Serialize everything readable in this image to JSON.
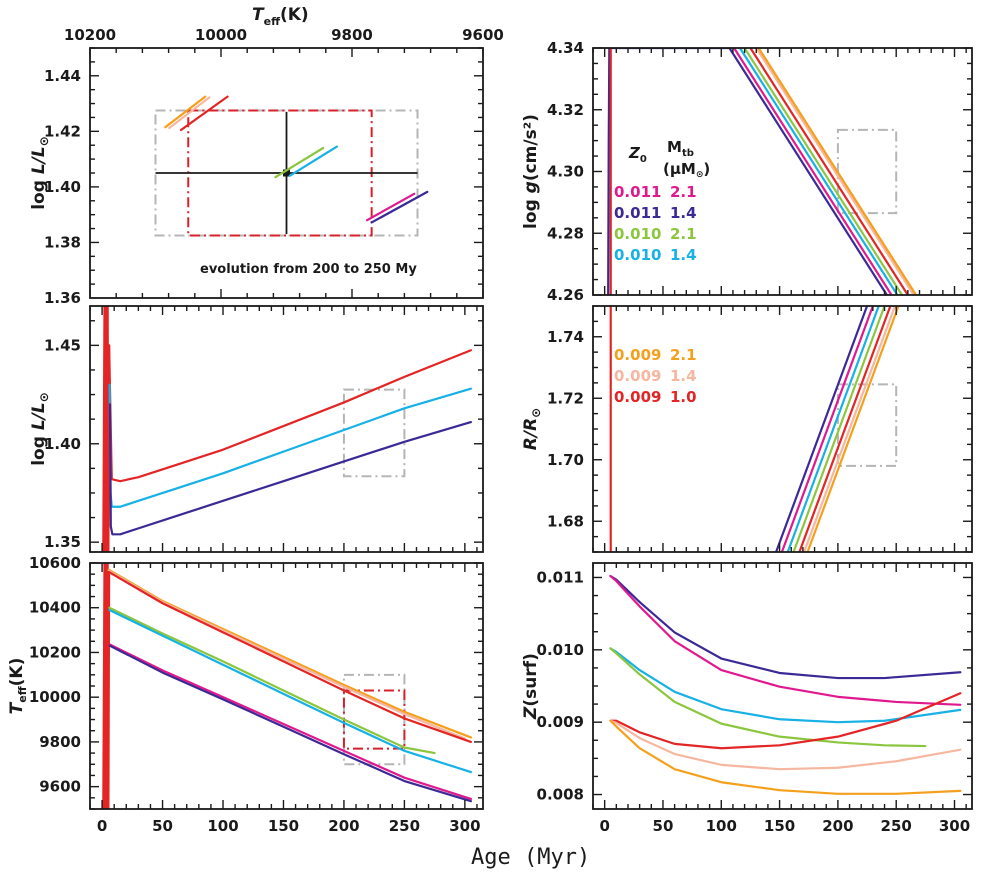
{
  "figure": {
    "xlabel": "Age (Myr)",
    "top_axis_label": "T_eff(K)",
    "annotation": "evolution from 200 to 250 My"
  },
  "colors": {
    "Z0.011_M2.1": "#e0198f",
    "Z0.011_M1.4": "#3b2a96",
    "Z0.010_M2.1": "#8cc63e",
    "Z0.010_M1.4": "#17b1e6",
    "Z0.009_M2.1": "#f5a01c",
    "Z0.009_M1.4": "#f6b7a0",
    "Z0.009_M1.0": "#e32526",
    "box_gray": "#b5b5b5",
    "box_red": "#d8202a",
    "axis": "#1a1a1a"
  },
  "legend": {
    "header_z": "Z",
    "header_z_sub": "0",
    "header_m": "M",
    "header_m_sub": "tb",
    "header_unit": "(μM",
    "header_unit_sub": "⊙",
    "header_unit_close": ")",
    "top": [
      {
        "z": "0.011",
        "m": "2.1",
        "color": "#e0198f"
      },
      {
        "z": "0.011",
        "m": "1.4",
        "color": "#3b2a96"
      },
      {
        "z": "0.010",
        "m": "2.1",
        "color": "#8cc63e"
      },
      {
        "z": "0.010",
        "m": "1.4",
        "color": "#17b1e6"
      }
    ],
    "bottom": [
      {
        "z": "0.009",
        "m": "2.1",
        "color": "#f5a01c"
      },
      {
        "z": "0.009",
        "m": "1.4",
        "color": "#f6b7a0"
      },
      {
        "z": "0.009",
        "m": "1.0",
        "color": "#e32526"
      }
    ]
  },
  "chart_data": [
    {
      "id": "hr",
      "type": "line",
      "title": "",
      "xlabel": "T_eff(K)",
      "ylabel": "log L/L⊙",
      "xlim": [
        10200,
        9600
      ],
      "ylim": [
        1.36,
        1.45
      ],
      "xticks": [
        10200,
        10000,
        9800,
        9600
      ],
      "yticks": [
        1.36,
        1.38,
        1.4,
        1.42,
        1.44
      ],
      "ytick_labels": [
        "1.36",
        "1.38",
        "1.40",
        "1.42",
        "1.44"
      ],
      "series": [
        {
          "name": "Z0.009 M2.1",
          "color": "#f5a01c",
          "x": [
            10085,
            10024
          ],
          "y": [
            1.4215,
            1.4325
          ]
        },
        {
          "name": "Z0.009 M1.4",
          "color": "#f6b7a0",
          "x": [
            10079,
            10018
          ],
          "y": [
            1.4212,
            1.4322
          ]
        },
        {
          "name": "Z0.009 M1.0",
          "color": "#e32526",
          "x": [
            10061,
            9990
          ],
          "y": [
            1.4205,
            1.4325
          ]
        },
        {
          "name": "Z0.010 M2.1",
          "color": "#8cc63e",
          "x": [
            9917,
            9844
          ],
          "y": [
            1.4035,
            1.414
          ]
        },
        {
          "name": "Z0.010 M1.4",
          "color": "#17b1e6",
          "x": [
            9895,
            9823
          ],
          "y": [
            1.404,
            1.4145
          ]
        },
        {
          "name": "Z0.011 M2.1",
          "color": "#e0198f",
          "x": [
            9777,
            9705
          ],
          "y": [
            1.388,
            1.3975
          ]
        },
        {
          "name": "Z0.011 M1.4",
          "color": "#3b2a96",
          "x": [
            9770,
            9685
          ],
          "y": [
            1.3872,
            1.3982
          ]
        }
      ],
      "boxes": [
        {
          "color": "#b5b5b5",
          "xlim": [
            10100,
            9700
          ],
          "ylim": [
            1.3825,
            1.4275
          ]
        },
        {
          "color": "#d8202a",
          "xlim": [
            10050,
            9770
          ],
          "ylim": [
            1.3825,
            1.4275
          ]
        }
      ],
      "errorbar": {
        "x": 9900,
        "y": 1.405,
        "xerr": 200,
        "yerr": 0.022
      }
    },
    {
      "id": "logg",
      "type": "line",
      "xlabel": "Age (Myr)",
      "ylabel": "log g(cm/s²)",
      "xlim": [
        -10,
        315
      ],
      "ylim": [
        4.26,
        4.34
      ],
      "xticks": [
        0,
        50,
        100,
        150,
        200,
        250,
        300
      ],
      "yticks": [
        4.26,
        4.28,
        4.3,
        4.32,
        4.34
      ],
      "ytick_labels": [
        "4.26",
        "4.28",
        "4.30",
        "4.32",
        "4.34"
      ],
      "series": [
        {
          "name": "Z0.011 M1.4",
          "color": "#3b2a96",
          "x": [
            3,
            3.5,
            4,
            107,
            242
          ],
          "y": [
            4.26,
            4.31,
            4.34,
            4.34,
            4.26
          ]
        },
        {
          "name": "Z0.011 M2.1",
          "color": "#e0198f",
          "x": [
            111,
            246
          ],
          "y": [
            4.34,
            4.26
          ]
        },
        {
          "name": "Z0.010 M1.4",
          "color": "#17b1e6",
          "x": [
            116,
            251
          ],
          "y": [
            4.34,
            4.26
          ]
        },
        {
          "name": "Z0.010 M2.1",
          "color": "#8cc63e",
          "x": [
            120,
            255
          ],
          "y": [
            4.34,
            4.26
          ]
        },
        {
          "name": "Z0.009 M1.0",
          "color": "#e32526",
          "x": [
            125,
            260
          ],
          "y": [
            4.34,
            4.26
          ]
        },
        {
          "name": "Z0.009 M1.4",
          "color": "#f6b7a0",
          "x": [
            130,
            265
          ],
          "y": [
            4.34,
            4.26
          ]
        },
        {
          "name": "Z0.009 M2.1",
          "color": "#f5a01c",
          "x": [
            132,
            267
          ],
          "y": [
            4.34,
            4.26
          ]
        },
        {
          "name": "PMS red",
          "color": "#e32526",
          "x": [
            5.2,
            5.2
          ],
          "y": [
            4.26,
            4.34
          ]
        }
      ],
      "boxes": [
        {
          "color": "#b5b5b5",
          "xlim": [
            200,
            250
          ],
          "ylim": [
            4.2865,
            4.3135
          ]
        }
      ]
    },
    {
      "id": "radius",
      "type": "line",
      "xlabel": "Age (Myr)",
      "ylabel": "R/R⊙",
      "xlim": [
        -10,
        315
      ],
      "ylim": [
        1.67,
        1.75
      ],
      "xticks": [
        0,
        50,
        100,
        150,
        200,
        250,
        300
      ],
      "yticks": [
        1.68,
        1.7,
        1.72,
        1.74
      ],
      "ytick_labels": [
        "1.68",
        "1.70",
        "1.72",
        "1.74"
      ],
      "series": [
        {
          "name": "Z0.011 M1.4",
          "color": "#3b2a96",
          "x": [
            147,
            225
          ],
          "y": [
            1.67,
            1.75
          ]
        },
        {
          "name": "Z0.011 M2.1",
          "color": "#e0198f",
          "x": [
            152,
            230
          ],
          "y": [
            1.67,
            1.75
          ]
        },
        {
          "name": "Z0.010 M1.4",
          "color": "#17b1e6",
          "x": [
            157,
            235
          ],
          "y": [
            1.67,
            1.75
          ]
        },
        {
          "name": "Z0.010 M2.1",
          "color": "#8cc63e",
          "x": [
            162,
            240
          ],
          "y": [
            1.67,
            1.75
          ]
        },
        {
          "name": "Z0.009 M1.0",
          "color": "#e32526",
          "x": [
            167,
            245
          ],
          "y": [
            1.67,
            1.75
          ]
        },
        {
          "name": "Z0.009 M1.4",
          "color": "#f6b7a0",
          "x": [
            171,
            249
          ],
          "y": [
            1.67,
            1.75
          ]
        },
        {
          "name": "Z0.009 M2.1",
          "color": "#f5a01c",
          "x": [
            174,
            252
          ],
          "y": [
            1.67,
            1.75
          ]
        },
        {
          "name": "PMS red",
          "color": "#e32526",
          "x": [
            5.2,
            5.2
          ],
          "y": [
            1.67,
            1.75
          ]
        }
      ],
      "boxes": [
        {
          "color": "#b5b5b5",
          "xlim": [
            200,
            250
          ],
          "ylim": [
            1.698,
            1.7245
          ]
        }
      ]
    },
    {
      "id": "logl",
      "type": "line",
      "xlabel": "Age (Myr)",
      "ylabel": "log L/L⊙",
      "xlim": [
        -10,
        315
      ],
      "ylim": [
        1.345,
        1.47
      ],
      "xticks": [
        0,
        50,
        100,
        150,
        200,
        250,
        300
      ],
      "yticks": [
        1.35,
        1.4,
        1.45
      ],
      "ytick_labels": [
        "1.35",
        "1.40",
        "1.45"
      ],
      "series": [
        {
          "name": "PMS red",
          "color": "#e32526",
          "x": [
            1,
            2,
            2.7,
            3.3,
            4,
            4.6,
            5.2,
            5.8
          ],
          "y": [
            1.345,
            1.47,
            1.345,
            1.47,
            1.345,
            1.47,
            1.345,
            1.45
          ]
        },
        {
          "name": "Z0.009 M1.0",
          "color": "#e32526",
          "x": [
            5.8,
            8,
            15,
            30,
            60,
            100,
            150,
            200,
            250,
            305
          ],
          "y": [
            1.45,
            1.382,
            1.381,
            1.383,
            1.389,
            1.397,
            1.409,
            1.421,
            1.434,
            1.4475
          ]
        },
        {
          "name": "Z0.010 M1.4",
          "color": "#17b1e6",
          "x": [
            6.2,
            7,
            8,
            15,
            30,
            60,
            100,
            150,
            200,
            250,
            305
          ],
          "y": [
            1.43,
            1.375,
            1.368,
            1.368,
            1.371,
            1.377,
            1.385,
            1.396,
            1.407,
            1.418,
            1.428
          ]
        },
        {
          "name": "Z0.011 M1.4",
          "color": "#3b2a96",
          "x": [
            6.5,
            7.2,
            8.5,
            15,
            30,
            60,
            100,
            150,
            200,
            250,
            305
          ],
          "y": [
            1.42,
            1.358,
            1.354,
            1.354,
            1.357,
            1.363,
            1.371,
            1.381,
            1.391,
            1.401,
            1.411
          ]
        }
      ],
      "boxes": [
        {
          "color": "#b5b5b5",
          "xlim": [
            200,
            250
          ],
          "ylim": [
            1.3835,
            1.4275
          ]
        }
      ]
    },
    {
      "id": "teff",
      "type": "line",
      "xlabel": "Age (Myr)",
      "ylabel": "T_eff(K)",
      "xlim": [
        -10,
        315
      ],
      "ylim": [
        9500,
        10600
      ],
      "xticks": [
        0,
        50,
        100,
        150,
        200,
        250,
        300
      ],
      "yticks": [
        9600,
        9800,
        10000,
        10200,
        10400,
        10600
      ],
      "ytick_labels": [
        "9600",
        "9800",
        "10000",
        "10200",
        "10400",
        "10600"
      ],
      "series": [
        {
          "name": "PMS red",
          "color": "#e32526",
          "x": [
            1,
            2,
            2.7,
            3.3,
            4,
            4.6,
            5.2,
            5.8
          ],
          "y": [
            9500,
            10600,
            9500,
            10600,
            9500,
            10600,
            9500,
            10560
          ]
        },
        {
          "name": "Z0.009 M2.1",
          "color": "#f5a01c",
          "x": [
            5.5,
            50,
            100,
            150,
            200,
            250,
            305
          ],
          "y": [
            10570,
            10430,
            10305,
            10180,
            10055,
            9935,
            9820
          ]
        },
        {
          "name": "Z0.009 M1.4",
          "color": "#f6b7a0",
          "x": [
            5.5,
            50,
            100,
            150,
            200,
            250,
            300
          ],
          "y": [
            10565,
            10425,
            10298,
            10172,
            10046,
            9925,
            9815
          ]
        },
        {
          "name": "Z0.009 M1.0",
          "color": "#e32526",
          "x": [
            5.5,
            50,
            100,
            150,
            200,
            250,
            305
          ],
          "y": [
            10560,
            10420,
            10290,
            10160,
            10030,
            9905,
            9800
          ]
        },
        {
          "name": "Z0.010 M2.1",
          "color": "#8cc63e",
          "x": [
            6,
            50,
            100,
            150,
            200,
            250,
            275
          ],
          "y": [
            10400,
            10285,
            10160,
            10030,
            9900,
            9775,
            9750
          ]
        },
        {
          "name": "Z0.010 M1.4",
          "color": "#17b1e6",
          "x": [
            6,
            50,
            100,
            150,
            200,
            250,
            305
          ],
          "y": [
            10390,
            10275,
            10145,
            10015,
            9885,
            9760,
            9665
          ]
        },
        {
          "name": "Z0.011 M2.1",
          "color": "#e0198f",
          "x": [
            6.5,
            50,
            100,
            150,
            200,
            250,
            305
          ],
          "y": [
            10235,
            10120,
            10000,
            9880,
            9760,
            9640,
            9545
          ]
        },
        {
          "name": "Z0.011 M1.4",
          "color": "#3b2a96",
          "x": [
            6.5,
            50,
            100,
            150,
            200,
            250,
            305
          ],
          "y": [
            10230,
            10110,
            9990,
            9868,
            9745,
            9625,
            9535
          ]
        }
      ],
      "boxes": [
        {
          "color": "#b5b5b5",
          "xlim": [
            200,
            250
          ],
          "ylim": [
            9700,
            10100
          ]
        },
        {
          "color": "#d8202a",
          "xlim": [
            200,
            250
          ],
          "ylim": [
            9770,
            10030
          ]
        }
      ]
    },
    {
      "id": "zsurf",
      "type": "line",
      "xlabel": "Age (Myr)",
      "ylabel": "Z(surf)",
      "xlim": [
        -10,
        315
      ],
      "ylim": [
        0.0078,
        0.0112
      ],
      "xticks": [
        0,
        50,
        100,
        150,
        200,
        250,
        300
      ],
      "yticks": [
        0.008,
        0.009,
        0.01,
        0.011
      ],
      "ytick_labels": [
        "0.008",
        "0.009",
        "0.010",
        "0.011"
      ],
      "series": [
        {
          "name": "Z0.011 M1.4",
          "color": "#3b2a96",
          "x": [
            5,
            10,
            30,
            60,
            100,
            150,
            200,
            240,
            305
          ],
          "y": [
            0.01102,
            0.01097,
            0.01066,
            0.01024,
            0.00988,
            0.00968,
            0.00961,
            0.00961,
            0.00969
          ]
        },
        {
          "name": "Z0.011 M2.1",
          "color": "#e0198f",
          "x": [
            5,
            10,
            30,
            60,
            100,
            150,
            200,
            250,
            305
          ],
          "y": [
            0.01102,
            0.01095,
            0.0106,
            0.01012,
            0.00972,
            0.00949,
            0.00935,
            0.00928,
            0.00924
          ]
        },
        {
          "name": "Z0.010 M1.4",
          "color": "#17b1e6",
          "x": [
            5,
            10,
            30,
            60,
            100,
            150,
            200,
            240,
            305
          ],
          "y": [
            0.01002,
            0.00997,
            0.00972,
            0.00942,
            0.00918,
            0.00904,
            0.009,
            0.00902,
            0.00917
          ]
        },
        {
          "name": "Z0.010 M2.1",
          "color": "#8cc63e",
          "x": [
            5,
            10,
            30,
            60,
            100,
            150,
            200,
            240,
            275
          ],
          "y": [
            0.01002,
            0.00995,
            0.00966,
            0.00928,
            0.00898,
            0.0088,
            0.00872,
            0.00868,
            0.00867
          ]
        },
        {
          "name": "Z0.009 M1.0",
          "color": "#e32526",
          "x": [
            5,
            10,
            30,
            60,
            100,
            150,
            200,
            250,
            305
          ],
          "y": [
            0.00902,
            0.00902,
            0.00886,
            0.0087,
            0.00864,
            0.00868,
            0.0088,
            0.00902,
            0.0094
          ]
        },
        {
          "name": "Z0.009 M1.4",
          "color": "#f6b7a0",
          "x": [
            5,
            10,
            30,
            60,
            100,
            150,
            200,
            250,
            305
          ],
          "y": [
            0.00902,
            0.00899,
            0.00878,
            0.00856,
            0.00841,
            0.00835,
            0.00837,
            0.00846,
            0.00862
          ]
        },
        {
          "name": "Z0.009 M2.1",
          "color": "#f5a01c",
          "x": [
            5,
            10,
            30,
            60,
            100,
            150,
            200,
            250,
            305
          ],
          "y": [
            0.00902,
            0.00894,
            0.00864,
            0.00835,
            0.00817,
            0.00806,
            0.00801,
            0.00801,
            0.00805
          ]
        }
      ],
      "boxes": []
    }
  ]
}
